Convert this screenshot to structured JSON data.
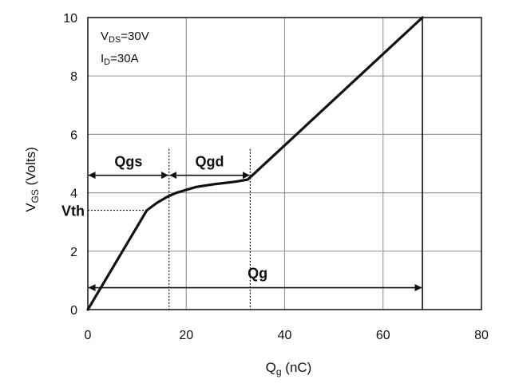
{
  "chart_data": {
    "type": "line",
    "title": "",
    "xlabel_main": "Q",
    "xlabel_sub": "g",
    "xlabel_unit": " (nC)",
    "ylabel_main": "V",
    "ylabel_sub": "GS",
    "ylabel_unit": " (Volts)",
    "xlim": [
      0,
      80
    ],
    "ylim": [
      0,
      10
    ],
    "x_ticks": [
      "0",
      "20",
      "40",
      "60",
      "80"
    ],
    "y_ticks": [
      "0",
      "2",
      "4",
      "6",
      "8",
      "10"
    ],
    "x_tick_values": [
      0,
      20,
      40,
      60,
      80
    ],
    "y_tick_values": [
      0,
      2,
      4,
      6,
      8,
      10
    ],
    "x_grid": [
      20,
      40,
      60
    ],
    "y_grid": [
      2,
      4,
      6,
      8
    ],
    "grid": true,
    "series": [
      {
        "x": [
          0,
          12,
          14,
          16,
          18,
          22,
          26,
          30,
          32.5,
          68
        ],
        "y": [
          0,
          3.4,
          3.65,
          3.85,
          4.0,
          4.2,
          4.3,
          4.38,
          4.45,
          10
        ]
      }
    ],
    "annotations": {
      "conditions_line1_main": "V",
      "conditions_line1_sub": "DS",
      "conditions_line1_rest": "=30V",
      "conditions_line2_main": "I",
      "conditions_line2_sub": "D",
      "conditions_line2_rest": "=30A",
      "vth_label": "Vth",
      "vth_value": 3.4,
      "qgs_label": "Qgs",
      "qgs_range": [
        0,
        16.5
      ],
      "qgd_label": "Qgd",
      "qgd_range": [
        16.5,
        33
      ],
      "qg_label": "Qg",
      "qg_range": [
        0,
        68
      ],
      "region_arrow_y": 4.6,
      "qg_arrow_y": 0.75
    }
  }
}
